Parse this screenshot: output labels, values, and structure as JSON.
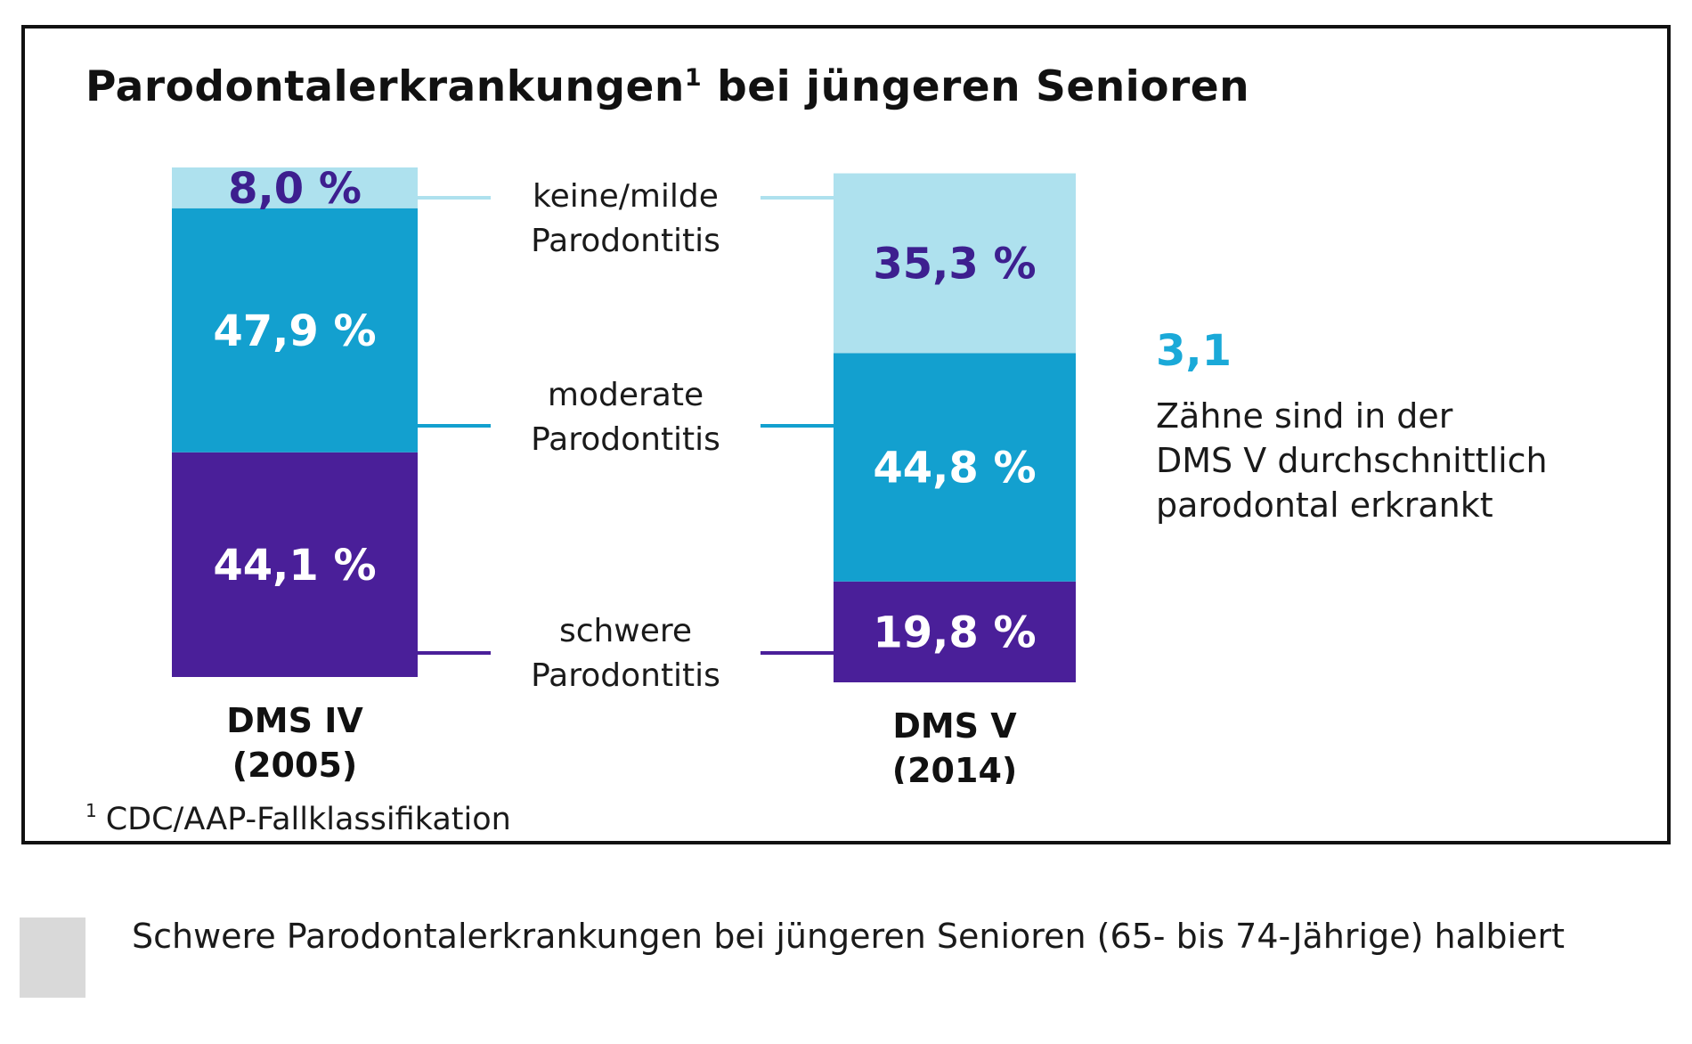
{
  "chart_data": {
    "type": "bar",
    "stacked": true,
    "title": "Parodontalerkrankungen",
    "title_superscript": "1",
    "title_suffix": "bei jüngeren Senioren",
    "categories": [
      {
        "name": "DMS IV",
        "sub": "(2005)"
      },
      {
        "name": "DMS V",
        "sub": "(2014)"
      }
    ],
    "series": [
      {
        "name": "schwere Parodontitis",
        "name_lines": [
          "schwere",
          "Parodontitis"
        ],
        "color": "#4a1f99",
        "text_color": "#ffffff",
        "values": [
          44.1,
          19.8
        ],
        "labels": [
          "44,1 %",
          "19,8 %"
        ]
      },
      {
        "name": "moderate Parodontitis",
        "name_lines": [
          "moderate",
          "Parodontitis"
        ],
        "color": "#13a0cf",
        "text_color": "#ffffff",
        "values": [
          47.9,
          44.8
        ],
        "labels": [
          "47,9 %",
          "44,8 %"
        ]
      },
      {
        "name": "keine/milde Parodontitis",
        "name_lines": [
          "keine/milde",
          "Parodontitis"
        ],
        "color": "#aee1ee",
        "text_color": "#3d1f8f",
        "values": [
          8.0,
          35.3
        ],
        "labels": [
          "8,0 %",
          "35,3 %"
        ]
      }
    ],
    "ylim": [
      0,
      100
    ],
    "legend": "center"
  },
  "stat": {
    "value": "3,1",
    "text_lines": [
      "Zähne sind in der",
      "DMS V durchschnittlich",
      "parodontal erkrankt"
    ]
  },
  "footnote": {
    "marker": "1",
    "text": "CDC/AAP-Fallklassifikation"
  },
  "caption": {
    "text": "Schwere Parodontalerkrankungen bei jüngeren Senioren (65- bis 74-Jährige) halbiert"
  }
}
